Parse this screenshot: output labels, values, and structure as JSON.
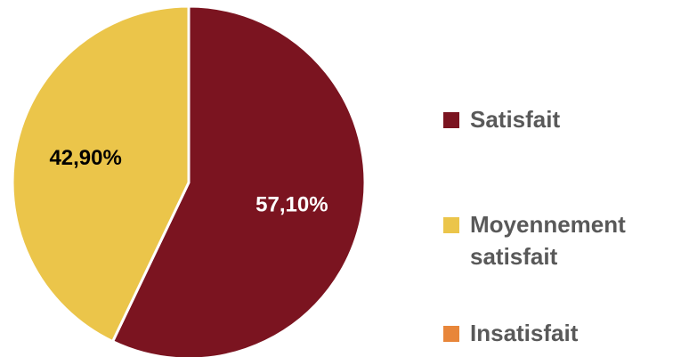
{
  "chart_data": {
    "type": "pie",
    "series": [
      {
        "values": [
          57.1,
          42.9,
          0
        ],
        "labels": [
          "57,10%",
          "42,90%",
          ""
        ]
      }
    ],
    "categories": [
      "Satisfait",
      "Moyennement satisfait",
      "Insatisfait"
    ],
    "colors": [
      "#7B1420",
      "#EBC54A",
      "#E8863A"
    ],
    "label_colors": [
      "#FFFFFF",
      "#000000",
      "#000000"
    ],
    "legend_position": "right",
    "start_angle": "12 o'clock",
    "direction": "clockwise"
  },
  "legend": {
    "items": [
      {
        "label": "Satisfait",
        "color": "#7B1420"
      },
      {
        "label": "Moyennement satisfait",
        "color": "#EBC54A"
      },
      {
        "label": "Insatisfait",
        "color": "#E8863A"
      }
    ]
  }
}
